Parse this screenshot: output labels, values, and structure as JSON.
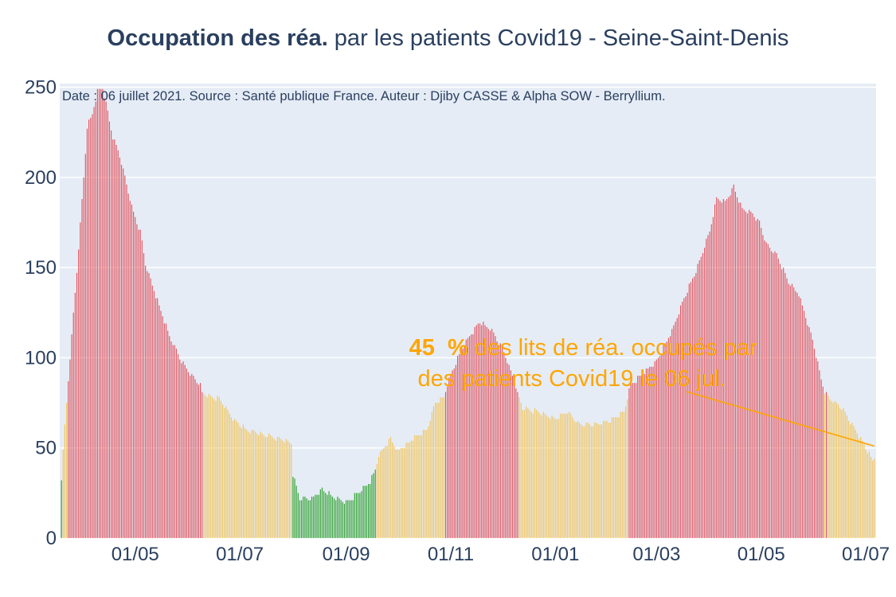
{
  "title": {
    "bold": "Occupation des réa.",
    "rest": " par les patients Covid19 - Seine-Saint-Denis"
  },
  "colors": {
    "green": "#2ca02c",
    "yellow": "#f2c45a",
    "red": "#e0555f",
    "plot_bg": "#e5ecf6",
    "grid": "#ffffff",
    "annotation": "#ffa500",
    "text": "#2a3f5f"
  },
  "chart_data": {
    "type": "bar",
    "title": "Occupation des réa. par les patients Covid19 - Seine-Saint-Denis",
    "source_note": "Date : 06 juillet 2021. Source : Santé publique France. Auteur : Djiby CASSE & Alpha SOW - Berryllium.",
    "x_range": [
      "2020-03-18",
      "2021-07-07"
    ],
    "ylim": [
      0,
      252
    ],
    "y_ticks": [
      0,
      50,
      100,
      150,
      200,
      250
    ],
    "x_ticks": [
      {
        "date": "2020-05-01",
        "label": "01/05"
      },
      {
        "date": "2020-07-01",
        "label": "01/07"
      },
      {
        "date": "2020-09-01",
        "label": "01/09"
      },
      {
        "date": "2020-11-01",
        "label": "01/11"
      },
      {
        "date": "2021-01-01",
        "label": "01/01"
      },
      {
        "date": "2021-03-01",
        "label": "01/03"
      },
      {
        "date": "2021-05-01",
        "label": "01/05"
      },
      {
        "date": "2021-07-01",
        "label": "01/07"
      }
    ],
    "grid": true,
    "bar_color_rule": "green below 40, yellow 40-80, red above 80",
    "series": [
      {
        "start_date": "2020-03-19",
        "end_date": "2021-07-06",
        "anchors": [
          [
            "2020-03-19",
            33
          ],
          [
            "2020-03-21",
            62
          ],
          [
            "2020-03-24",
            100
          ],
          [
            "2020-03-28",
            148
          ],
          [
            "2020-04-01",
            200
          ],
          [
            "2020-04-03",
            228
          ],
          [
            "2020-04-06",
            235
          ],
          [
            "2020-04-09",
            248
          ],
          [
            "2020-04-12",
            250
          ],
          [
            "2020-04-15",
            236
          ],
          [
            "2020-04-18",
            222
          ],
          [
            "2020-04-22",
            212
          ],
          [
            "2020-04-26",
            196
          ],
          [
            "2020-04-30",
            180
          ],
          [
            "2020-05-04",
            170
          ],
          [
            "2020-05-07",
            152
          ],
          [
            "2020-05-11",
            140
          ],
          [
            "2020-05-16",
            126
          ],
          [
            "2020-05-21",
            112
          ],
          [
            "2020-05-27",
            100
          ],
          [
            "2020-06-03",
            90
          ],
          [
            "2020-06-08",
            85
          ],
          [
            "2020-06-09",
            80
          ],
          [
            "2020-06-19",
            77
          ],
          [
            "2020-06-27",
            66
          ],
          [
            "2020-07-05",
            60
          ],
          [
            "2020-07-20",
            56
          ],
          [
            "2020-07-31",
            53
          ],
          [
            "2020-08-01",
            35
          ],
          [
            "2020-08-05",
            22
          ],
          [
            "2020-08-12",
            22
          ],
          [
            "2020-08-18",
            27
          ],
          [
            "2020-08-26",
            22
          ],
          [
            "2020-09-02",
            20
          ],
          [
            "2020-09-09",
            26
          ],
          [
            "2020-09-15",
            31
          ],
          [
            "2020-09-18",
            38
          ],
          [
            "2020-09-20",
            46
          ],
          [
            "2020-09-27",
            55
          ],
          [
            "2020-10-01",
            48
          ],
          [
            "2020-10-10",
            55
          ],
          [
            "2020-10-18",
            60
          ],
          [
            "2020-10-23",
            75
          ],
          [
            "2020-10-28",
            78
          ],
          [
            "2020-10-30",
            85
          ],
          [
            "2020-11-05",
            100
          ],
          [
            "2020-11-12",
            112
          ],
          [
            "2020-11-18",
            120
          ],
          [
            "2020-11-25",
            115
          ],
          [
            "2020-12-01",
            105
          ],
          [
            "2020-12-08",
            88
          ],
          [
            "2020-12-10",
            80
          ],
          [
            "2020-12-13",
            72
          ],
          [
            "2020-12-22",
            70
          ],
          [
            "2021-01-01",
            66
          ],
          [
            "2021-01-08",
            70
          ],
          [
            "2021-01-15",
            63
          ],
          [
            "2021-01-25",
            63
          ],
          [
            "2021-02-02",
            65
          ],
          [
            "2021-02-10",
            70
          ],
          [
            "2021-02-12",
            78
          ],
          [
            "2021-02-14",
            85
          ],
          [
            "2021-02-22",
            92
          ],
          [
            "2021-03-01",
            98
          ],
          [
            "2021-03-10",
            115
          ],
          [
            "2021-03-18",
            135
          ],
          [
            "2021-03-24",
            148
          ],
          [
            "2021-04-01",
            170
          ],
          [
            "2021-04-05",
            188
          ],
          [
            "2021-04-10",
            186
          ],
          [
            "2021-04-15",
            195
          ],
          [
            "2021-04-20",
            182
          ],
          [
            "2021-04-26",
            180
          ],
          [
            "2021-04-30",
            175
          ],
          [
            "2021-05-04",
            163
          ],
          [
            "2021-05-10",
            157
          ],
          [
            "2021-05-17",
            142
          ],
          [
            "2021-05-23",
            135
          ],
          [
            "2021-05-31",
            110
          ],
          [
            "2021-06-05",
            88
          ],
          [
            "2021-06-07",
            81
          ],
          [
            "2021-06-09",
            78
          ],
          [
            "2021-06-17",
            72
          ],
          [
            "2021-06-25",
            60
          ],
          [
            "2021-07-01",
            50
          ],
          [
            "2021-07-05",
            43
          ],
          [
            "2021-07-06",
            45
          ]
        ]
      }
    ],
    "annotation": {
      "percent": "45  %",
      "text_line1": " des lits de réa. occupés par",
      "text_line2": "des patients Covid19 le 06 jul.",
      "arrow_to": {
        "date": "2021-07-06",
        "value": 51
      }
    }
  }
}
